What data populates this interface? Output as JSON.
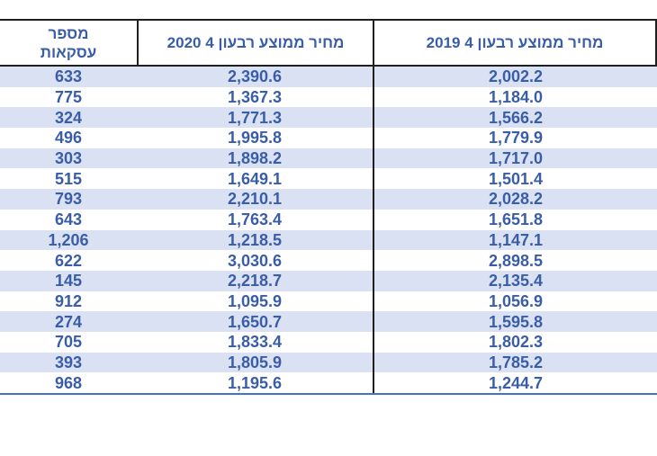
{
  "colors": {
    "text_blue": "#3A5DA8",
    "stripe_light_blue": "#D9E1F2",
    "header_border_black": "#1F1F1F",
    "bottom_rule_blue": "#4472C4",
    "background": "#FFFFFF"
  },
  "chart_data": {
    "type": "table",
    "direction": "rtl",
    "title": "",
    "columns": [
      {
        "id": "avg_price_q4_2019",
        "label": "מחיר ממוצע רבעון 4 2019"
      },
      {
        "id": "avg_price_q4_2020",
        "label": "מחיר ממוצע רבעון 4 2020"
      },
      {
        "id": "transactions",
        "label": "מספר\nעסקאות"
      }
    ],
    "layout": {
      "striping": "odd rows light blue, even rows white",
      "grid": "black box around header, vertical divider between price columns, blue bottom rule"
    },
    "rows": [
      {
        "transactions": "633",
        "avg_price_q4_2020": "2,390.6",
        "avg_price_q4_2019": "2,002.2"
      },
      {
        "transactions": "775",
        "avg_price_q4_2020": "1,367.3",
        "avg_price_q4_2019": "1,184.0"
      },
      {
        "transactions": "324",
        "avg_price_q4_2020": "1,771.3",
        "avg_price_q4_2019": "1,566.2"
      },
      {
        "transactions": "496",
        "avg_price_q4_2020": "1,995.8",
        "avg_price_q4_2019": "1,779.9"
      },
      {
        "transactions": "303",
        "avg_price_q4_2020": "1,898.2",
        "avg_price_q4_2019": "1,717.0"
      },
      {
        "transactions": "515",
        "avg_price_q4_2020": "1,649.1",
        "avg_price_q4_2019": "1,501.4"
      },
      {
        "transactions": "793",
        "avg_price_q4_2020": "2,210.1",
        "avg_price_q4_2019": "2,028.2"
      },
      {
        "transactions": "643",
        "avg_price_q4_2020": "1,763.4",
        "avg_price_q4_2019": "1,651.8"
      },
      {
        "transactions": "1,206",
        "avg_price_q4_2020": "1,218.5",
        "avg_price_q4_2019": "1,147.1"
      },
      {
        "transactions": "622",
        "avg_price_q4_2020": "3,030.6",
        "avg_price_q4_2019": "2,898.5"
      },
      {
        "transactions": "145",
        "avg_price_q4_2020": "2,218.7",
        "avg_price_q4_2019": "2,135.4"
      },
      {
        "transactions": "912",
        "avg_price_q4_2020": "1,095.9",
        "avg_price_q4_2019": "1,056.9"
      },
      {
        "transactions": "274",
        "avg_price_q4_2020": "1,650.7",
        "avg_price_q4_2019": "1,595.8"
      },
      {
        "transactions": "705",
        "avg_price_q4_2020": "1,833.4",
        "avg_price_q4_2019": "1,802.3"
      },
      {
        "transactions": "393",
        "avg_price_q4_2020": "1,805.9",
        "avg_price_q4_2019": "1,785.2"
      },
      {
        "transactions": "968",
        "avg_price_q4_2020": "1,195.6",
        "avg_price_q4_2019": "1,244.7"
      }
    ]
  }
}
